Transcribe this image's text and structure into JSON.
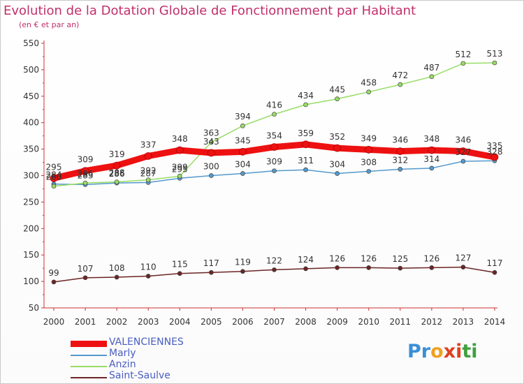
{
  "header": {
    "title": "Evolution de la Dotation Globale de Fonctionnement par Habitant",
    "subtitle": "(en € et par an)"
  },
  "brand": {
    "letters": [
      "P",
      "r",
      "o",
      "x",
      "i",
      "t",
      "i"
    ],
    "colors": [
      "#3a8fd8",
      "#3a8fd8",
      "#f0a020",
      "#e04020",
      "#e04020",
      "#40a040",
      "#40a040"
    ]
  },
  "chart_data": {
    "type": "line",
    "categories": [
      "2000",
      "2001",
      "2002",
      "2003",
      "2004",
      "2005",
      "2006",
      "2007",
      "2008",
      "2009",
      "2010",
      "2011",
      "2012",
      "2013",
      "2014"
    ],
    "ylim": [
      50,
      550
    ],
    "yticks": [
      50,
      100,
      150,
      200,
      250,
      300,
      350,
      400,
      450,
      500,
      550
    ],
    "grid": false,
    "legend_position": "bottom-left",
    "series": [
      {
        "name": "VALENCIENNES",
        "color": "#ee1111",
        "width": 9,
        "values": [
          295,
          309,
          319,
          337,
          348,
          343,
          345,
          354,
          359,
          352,
          349,
          346,
          348,
          346,
          335
        ]
      },
      {
        "name": "Marly",
        "color": "#5599cc",
        "width": 1.5,
        "values": [
          284,
          283,
          286,
          287,
          295,
          300,
          304,
          309,
          311,
          304,
          308,
          312,
          314,
          327,
          328
        ]
      },
      {
        "name": "Anzin",
        "color": "#99dd66",
        "width": 1.5,
        "values": [
          280,
          286,
          288,
          292,
          299,
          363,
          394,
          416,
          434,
          445,
          458,
          472,
          487,
          512,
          513
        ]
      },
      {
        "name": "Saint-Saulve",
        "color": "#6b2525",
        "width": 1.5,
        "values": [
          99,
          107,
          108,
          110,
          115,
          117,
          119,
          122,
          124,
          126,
          126,
          125,
          126,
          127,
          117
        ]
      }
    ]
  }
}
